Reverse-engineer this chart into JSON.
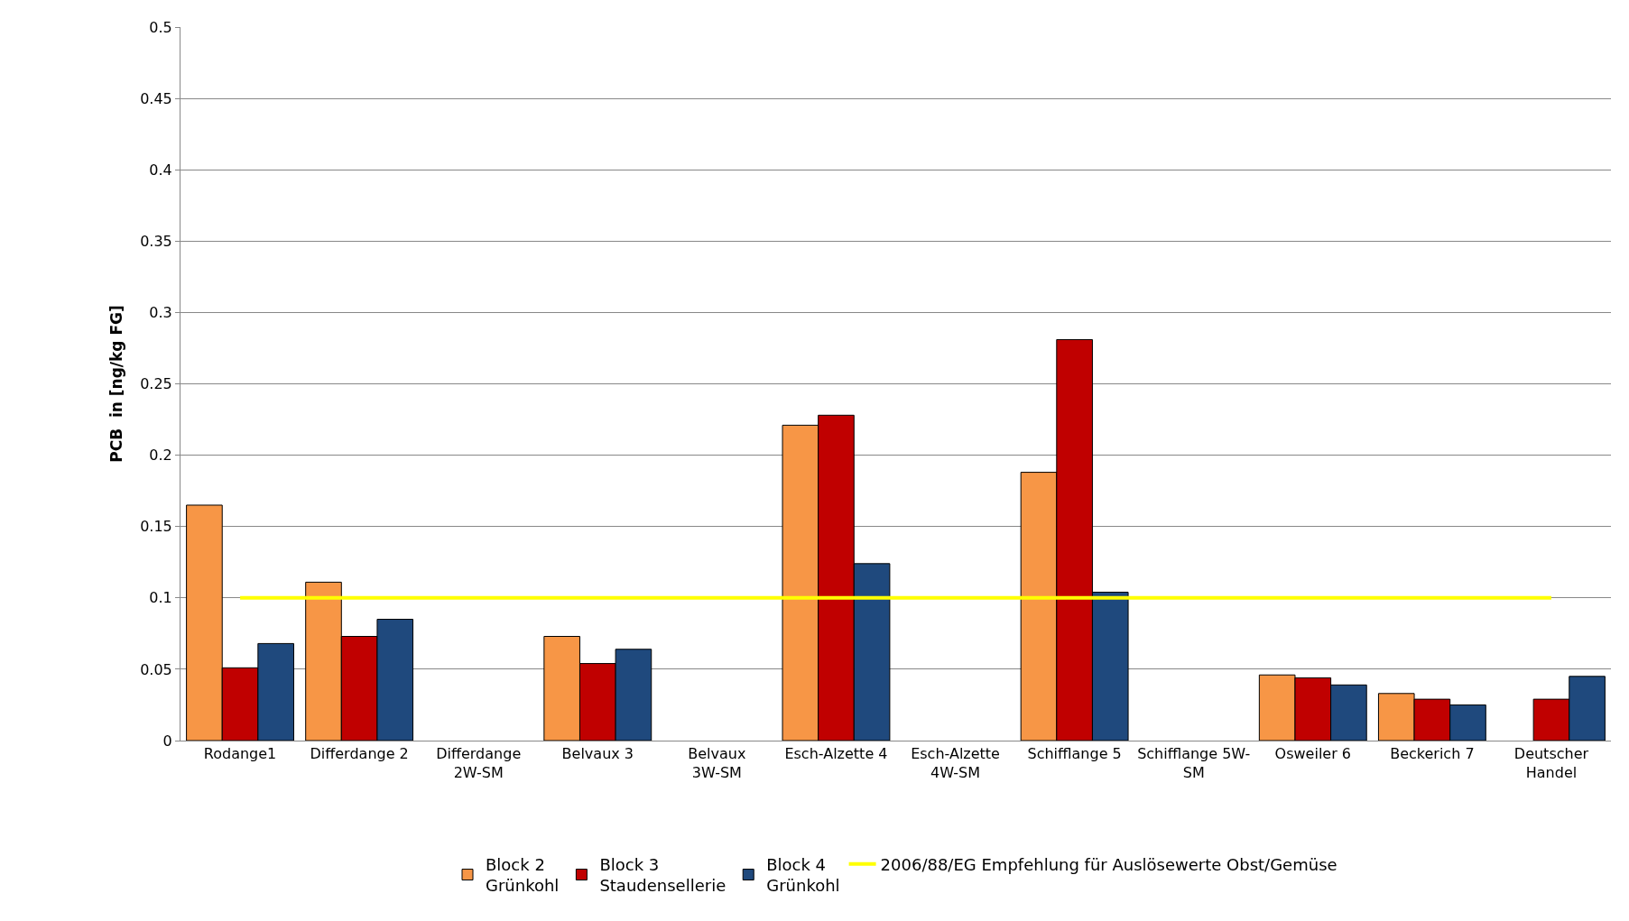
{
  "chart_data": {
    "type": "bar",
    "ylabel": "PCB  in [ng/kg FG]",
    "categories": [
      "Rodange1",
      "Differdange 2",
      "Differdange\n2W-SM",
      "Belvaux 3",
      "Belvaux\n3W-SM",
      "Esch-Alzette 4",
      "Esch-Alzette\n4W-SM",
      "Schifflange 5",
      "Schifflange 5W-\nSM",
      "Osweiler 6",
      "Beckerich 7",
      "Deutscher\nHandel"
    ],
    "series": [
      {
        "name": "Block 2\nGrünkohl",
        "color": "#f79646",
        "values": [
          0.165,
          0.111,
          null,
          0.073,
          null,
          0.221,
          null,
          0.188,
          null,
          0.046,
          0.033,
          null
        ]
      },
      {
        "name": "Block 3\nStaudensellerie",
        "color": "#c00000",
        "values": [
          0.051,
          0.073,
          null,
          0.054,
          null,
          0.228,
          null,
          0.281,
          null,
          0.044,
          0.029,
          0.029
        ]
      },
      {
        "name": "Block 4\nGrünkohl",
        "color": "#1f497d",
        "values": [
          0.068,
          0.085,
          null,
          0.064,
          null,
          0.124,
          null,
          0.104,
          null,
          0.039,
          0.025,
          0.045
        ]
      },
      {
        "name": "2006/88/EG Empfehlung für Auslösewerte Obst/Gemüse",
        "type": "line",
        "color": "#ffff00",
        "marker": "none",
        "values": [
          0.1,
          0.1,
          0.1,
          0.1,
          0.1,
          0.1,
          0.1,
          0.1,
          0.1,
          0.1,
          0.1,
          0.1
        ]
      }
    ],
    "ylim": [
      0,
      0.5
    ],
    "yticks": [
      0,
      0.05,
      0.1,
      0.15,
      0.2,
      0.25,
      0.3,
      0.35,
      0.4,
      0.45,
      0.5
    ],
    "grid": "y",
    "legend": "bottom"
  }
}
